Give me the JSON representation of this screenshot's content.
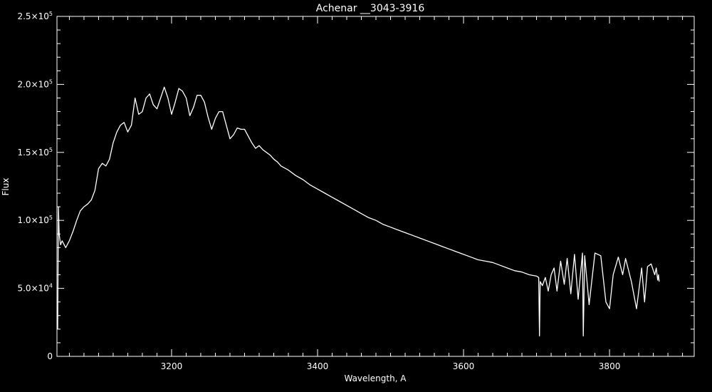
{
  "chart_data": {
    "type": "line",
    "title": "Achenar __3043-3916",
    "xlabel": "Wavelength, A",
    "ylabel": "Flux",
    "xlim": [
      3043,
      3916
    ],
    "ylim": [
      0,
      250000
    ],
    "grid": false,
    "background_color": "#000000",
    "foreground_color": "#ffffff",
    "x_ticks": [
      {
        "value": 3200,
        "label": "3200"
      },
      {
        "value": 3400,
        "label": "3400"
      },
      {
        "value": 3600,
        "label": "3600"
      },
      {
        "value": 3800,
        "label": "3800"
      }
    ],
    "y_ticks": [
      {
        "value": 0,
        "mantissa": "0",
        "exponent": ""
      },
      {
        "value": 50000,
        "mantissa": "5.0×10",
        "exponent": "4"
      },
      {
        "value": 100000,
        "mantissa": "1.0×10",
        "exponent": "5"
      },
      {
        "value": 150000,
        "mantissa": "1.5×10",
        "exponent": "5"
      },
      {
        "value": 200000,
        "mantissa": "2.0×10",
        "exponent": "5"
      },
      {
        "value": 250000,
        "mantissa": "2.5×10",
        "exponent": "5"
      }
    ],
    "series": [
      {
        "points": [
          [
            3044,
            20000
          ],
          [
            3045,
            110000
          ],
          [
            3046,
            90000
          ],
          [
            3048,
            82000
          ],
          [
            3050,
            85000
          ],
          [
            3055,
            80000
          ],
          [
            3060,
            85000
          ],
          [
            3065,
            92000
          ],
          [
            3070,
            100000
          ],
          [
            3075,
            107000
          ],
          [
            3080,
            110000
          ],
          [
            3085,
            112000
          ],
          [
            3090,
            115000
          ],
          [
            3095,
            122000
          ],
          [
            3100,
            138000
          ],
          [
            3105,
            142000
          ],
          [
            3110,
            140000
          ],
          [
            3115,
            145000
          ],
          [
            3120,
            157000
          ],
          [
            3125,
            165000
          ],
          [
            3130,
            170000
          ],
          [
            3135,
            172000
          ],
          [
            3140,
            165000
          ],
          [
            3145,
            170000
          ],
          [
            3150,
            190000
          ],
          [
            3155,
            178000
          ],
          [
            3160,
            180000
          ],
          [
            3165,
            190000
          ],
          [
            3170,
            193000
          ],
          [
            3175,
            185000
          ],
          [
            3180,
            182000
          ],
          [
            3185,
            190000
          ],
          [
            3190,
            198000
          ],
          [
            3195,
            190000
          ],
          [
            3200,
            178000
          ],
          [
            3205,
            187000
          ],
          [
            3210,
            197000
          ],
          [
            3215,
            195000
          ],
          [
            3220,
            190000
          ],
          [
            3225,
            177000
          ],
          [
            3230,
            183000
          ],
          [
            3235,
            192000
          ],
          [
            3240,
            192000
          ],
          [
            3245,
            187000
          ],
          [
            3250,
            176000
          ],
          [
            3255,
            167000
          ],
          [
            3260,
            175000
          ],
          [
            3265,
            180000
          ],
          [
            3270,
            180000
          ],
          [
            3275,
            170000
          ],
          [
            3280,
            160000
          ],
          [
            3285,
            163000
          ],
          [
            3290,
            168000
          ],
          [
            3295,
            167000
          ],
          [
            3300,
            167000
          ],
          [
            3305,
            162000
          ],
          [
            3310,
            157000
          ],
          [
            3315,
            153000
          ],
          [
            3320,
            155000
          ],
          [
            3325,
            152000
          ],
          [
            3330,
            150000
          ],
          [
            3335,
            148000
          ],
          [
            3340,
            145000
          ],
          [
            3345,
            143000
          ],
          [
            3350,
            140000
          ],
          [
            3360,
            137000
          ],
          [
            3370,
            133000
          ],
          [
            3380,
            130000
          ],
          [
            3390,
            126000
          ],
          [
            3400,
            123000
          ],
          [
            3410,
            120000
          ],
          [
            3420,
            117000
          ],
          [
            3430,
            114000
          ],
          [
            3440,
            111000
          ],
          [
            3450,
            108000
          ],
          [
            3460,
            105000
          ],
          [
            3470,
            102000
          ],
          [
            3480,
            100000
          ],
          [
            3490,
            97000
          ],
          [
            3500,
            95000
          ],
          [
            3510,
            93000
          ],
          [
            3520,
            91000
          ],
          [
            3530,
            89000
          ],
          [
            3540,
            87000
          ],
          [
            3550,
            85000
          ],
          [
            3560,
            83000
          ],
          [
            3570,
            81000
          ],
          [
            3580,
            79000
          ],
          [
            3590,
            77000
          ],
          [
            3600,
            75000
          ],
          [
            3610,
            73000
          ],
          [
            3620,
            71000
          ],
          [
            3630,
            70000
          ],
          [
            3640,
            69000
          ],
          [
            3650,
            67000
          ],
          [
            3660,
            65000
          ],
          [
            3670,
            63000
          ],
          [
            3680,
            62000
          ],
          [
            3690,
            60000
          ],
          [
            3700,
            59000
          ],
          [
            3703,
            58000
          ],
          [
            3704,
            15000
          ],
          [
            3705,
            55000
          ],
          [
            3708,
            52000
          ],
          [
            3712,
            58000
          ],
          [
            3716,
            48000
          ],
          [
            3720,
            60000
          ],
          [
            3724,
            65000
          ],
          [
            3728,
            48000
          ],
          [
            3733,
            70000
          ],
          [
            3738,
            53000
          ],
          [
            3742,
            72000
          ],
          [
            3747,
            46000
          ],
          [
            3752,
            75000
          ],
          [
            3757,
            42000
          ],
          [
            3763,
            76000
          ],
          [
            3764,
            15000
          ],
          [
            3766,
            74000
          ],
          [
            3772,
            38000
          ],
          [
            3780,
            76000
          ],
          [
            3788,
            74000
          ],
          [
            3795,
            40000
          ],
          [
            3800,
            35000
          ],
          [
            3805,
            60000
          ],
          [
            3812,
            73000
          ],
          [
            3818,
            60000
          ],
          [
            3822,
            72000
          ],
          [
            3830,
            55000
          ],
          [
            3837,
            35000
          ],
          [
            3844,
            65000
          ],
          [
            3848,
            40000
          ],
          [
            3852,
            66000
          ],
          [
            3857,
            68000
          ],
          [
            3862,
            60000
          ],
          [
            3864,
            65000
          ],
          [
            3866,
            56000
          ],
          [
            3867,
            60000
          ],
          [
            3868,
            55000
          ]
        ]
      }
    ]
  }
}
